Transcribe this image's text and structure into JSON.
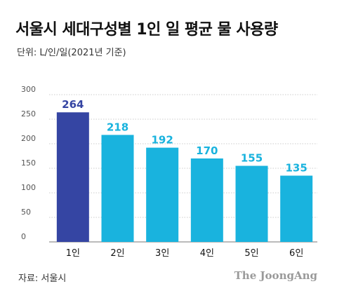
{
  "header": {
    "title": "서울시 세대구성별 1인 일 평균 물 사용량",
    "subtitle": "단위: L/인/일(2021년 기준)"
  },
  "footer": {
    "source": "자료: 서울시",
    "brand": "The JoongAng"
  },
  "colors": {
    "highlight": "#3545a3",
    "bar": "#19b3de",
    "highlight_label": "#3545a3",
    "label": "#19b3de",
    "grid": "#bdbdbd"
  },
  "chart_data": {
    "type": "bar",
    "title": "서울시 세대구성별 1인 일 평균 물 사용량",
    "subtitle": "단위: L/인/일(2021년 기준)",
    "xlabel": "",
    "ylabel": "",
    "categories": [
      "1인",
      "2인",
      "3인",
      "4인",
      "5인",
      "6인"
    ],
    "values": [
      264,
      218,
      192,
      170,
      155,
      135
    ],
    "highlight_index": 0,
    "ylim": [
      0,
      300
    ],
    "yticks": [
      0,
      50,
      100,
      150,
      200,
      250,
      300
    ],
    "grid": true,
    "legend": "none"
  }
}
